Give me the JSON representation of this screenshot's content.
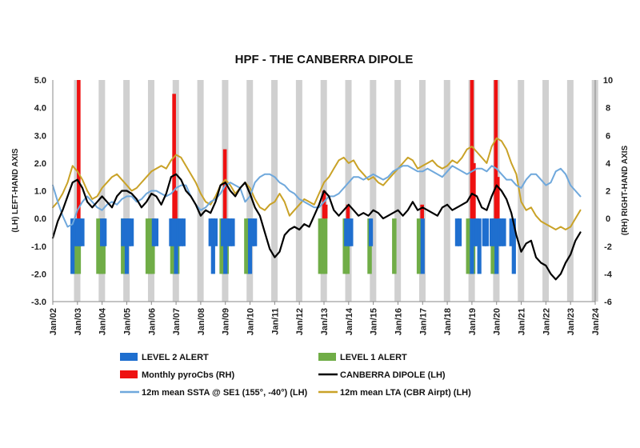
{
  "chart_data": {
    "type": "bar",
    "title": "HPF - THE CANBERRA DIPOLE",
    "left_axis_label": "(LH) LEFT-HAND AXIS",
    "right_axis_label": "(RH) RIGHT-HAND AXIS",
    "left_ylim": [
      -3.0,
      5.0
    ],
    "right_ylim": [
      -6,
      10
    ],
    "left_ticks": [
      "5.0",
      "4.0",
      "3.0",
      "2.0",
      "1.0",
      "0.0",
      "-1.0",
      "-2.0",
      "-3.0"
    ],
    "right_ticks": [
      "10",
      "8",
      "6",
      "4",
      "2",
      "0",
      "-2",
      "-4",
      "-6"
    ],
    "x_ticks": [
      "Jan/02",
      "Jan/03",
      "Jan/04",
      "Jan/05",
      "Jan/06",
      "Jan/07",
      "Jan/08",
      "Jan/09",
      "Jan/10",
      "Jan/11",
      "Jan/12",
      "Jan/13",
      "Jan/14",
      "Jan/15",
      "Jan/16",
      "Jan/17",
      "Jan/18",
      "Jan/19",
      "Jan/20",
      "Jan/21",
      "Jan/22",
      "Jan/23",
      "Jan/24"
    ],
    "x_range": [
      2002.0,
      2024.0
    ],
    "grid": "vertical grey bands each year",
    "legend_placement": "bottom",
    "colors": {
      "level2": "#1f6fcf",
      "level1": "#70ad47",
      "pyrocbs": "#ee1111",
      "dipole": "#000000",
      "ssta": "#6fa8dc",
      "lta": "#c9a227",
      "band": "#d0d0d0"
    },
    "legend": [
      {
        "key": "level2",
        "label": "LEVEL 2 ALERT",
        "kind": "bar"
      },
      {
        "key": "level1",
        "label": "LEVEL 1 ALERT",
        "kind": "bar"
      },
      {
        "key": "pyrocbs",
        "label": "Monthly pyroCbs (RH)",
        "kind": "bar"
      },
      {
        "key": "dipole",
        "label": "CANBERRA DIPOLE (LH)",
        "kind": "line"
      },
      {
        "key": "ssta",
        "label": "12m mean SSTA @ SE1 (155°, -40°) (LH)",
        "kind": "line"
      },
      {
        "key": "lta",
        "label": "12m mean LTA (CBR Airpt) (LH)",
        "kind": "line"
      }
    ],
    "level1_alerts": [
      {
        "x": 2002.85,
        "y": -2.0
      },
      {
        "x": 2002.95,
        "y": -2.0
      },
      {
        "x": 2003.05,
        "y": -2.0
      },
      {
        "x": 2003.85,
        "y": -2.0
      },
      {
        "x": 2003.95,
        "y": -2.0
      },
      {
        "x": 2004.05,
        "y": -2.0
      },
      {
        "x": 2004.85,
        "y": -2.0
      },
      {
        "x": 2004.95,
        "y": -2.0
      },
      {
        "x": 2005.85,
        "y": -2.0
      },
      {
        "x": 2005.95,
        "y": -2.0
      },
      {
        "x": 2006.05,
        "y": -2.0
      },
      {
        "x": 2006.85,
        "y": -2.0
      },
      {
        "x": 2006.95,
        "y": -2.0
      },
      {
        "x": 2007.05,
        "y": -2.0
      },
      {
        "x": 2008.85,
        "y": -2.0
      },
      {
        "x": 2008.95,
        "y": -2.0
      },
      {
        "x": 2009.05,
        "y": -2.0
      },
      {
        "x": 2009.85,
        "y": -2.0
      },
      {
        "x": 2009.95,
        "y": -2.0
      },
      {
        "x": 2012.85,
        "y": -2.0
      },
      {
        "x": 2012.95,
        "y": -2.0
      },
      {
        "x": 2013.05,
        "y": -2.0
      },
      {
        "x": 2013.85,
        "y": -2.0
      },
      {
        "x": 2013.95,
        "y": -2.0
      },
      {
        "x": 2014.85,
        "y": -2.0
      },
      {
        "x": 2015.85,
        "y": -2.0
      },
      {
        "x": 2016.85,
        "y": -2.0
      },
      {
        "x": 2018.85,
        "y": -2.0
      },
      {
        "x": 2018.95,
        "y": -2.0
      },
      {
        "x": 2019.05,
        "y": -2.0
      },
      {
        "x": 2019.85,
        "y": -2.0
      },
      {
        "x": 2019.95,
        "y": -2.0
      }
    ],
    "level2_alerts": [
      {
        "x": 2002.8,
        "y": -2.0
      },
      {
        "x": 2002.9,
        "y": -1.0
      },
      {
        "x": 2003.0,
        "y": -1.0
      },
      {
        "x": 2003.1,
        "y": -1.0
      },
      {
        "x": 2003.2,
        "y": -1.0
      },
      {
        "x": 2004.0,
        "y": -1.0
      },
      {
        "x": 2004.1,
        "y": -1.0
      },
      {
        "x": 2004.85,
        "y": -1.0
      },
      {
        "x": 2005.0,
        "y": -2.0
      },
      {
        "x": 2005.1,
        "y": -1.0
      },
      {
        "x": 2005.2,
        "y": -1.0
      },
      {
        "x": 2006.1,
        "y": -1.0
      },
      {
        "x": 2006.2,
        "y": -1.0
      },
      {
        "x": 2006.8,
        "y": -1.0
      },
      {
        "x": 2006.9,
        "y": -1.0
      },
      {
        "x": 2007.0,
        "y": -2.0
      },
      {
        "x": 2007.1,
        "y": -1.0
      },
      {
        "x": 2007.2,
        "y": -1.0
      },
      {
        "x": 2007.3,
        "y": -1.0
      },
      {
        "x": 2008.4,
        "y": -1.0
      },
      {
        "x": 2008.5,
        "y": -2.0
      },
      {
        "x": 2008.6,
        "y": -1.0
      },
      {
        "x": 2008.9,
        "y": -1.0
      },
      {
        "x": 2009.0,
        "y": -2.0
      },
      {
        "x": 2009.1,
        "y": -1.0
      },
      {
        "x": 2009.2,
        "y": -1.0
      },
      {
        "x": 2009.3,
        "y": -1.0
      },
      {
        "x": 2010.0,
        "y": -2.0
      },
      {
        "x": 2010.1,
        "y": -1.0
      },
      {
        "x": 2010.2,
        "y": -1.0
      },
      {
        "x": 2013.9,
        "y": -1.0
      },
      {
        "x": 2014.0,
        "y": -1.0
      },
      {
        "x": 2014.1,
        "y": -1.0
      },
      {
        "x": 2014.9,
        "y": -1.0
      },
      {
        "x": 2017.0,
        "y": -2.0
      },
      {
        "x": 2018.4,
        "y": -1.0
      },
      {
        "x": 2018.5,
        "y": -1.0
      },
      {
        "x": 2019.0,
        "y": -2.0
      },
      {
        "x": 2019.1,
        "y": -1.0
      },
      {
        "x": 2019.2,
        "y": -1.0
      },
      {
        "x": 2019.3,
        "y": -2.0
      },
      {
        "x": 2019.5,
        "y": -1.0
      },
      {
        "x": 2019.6,
        "y": -1.0
      },
      {
        "x": 2019.8,
        "y": -1.0
      },
      {
        "x": 2019.9,
        "y": -1.0
      },
      {
        "x": 2020.0,
        "y": -2.0
      },
      {
        "x": 2020.1,
        "y": -1.0
      },
      {
        "x": 2020.2,
        "y": -1.0
      },
      {
        "x": 2020.3,
        "y": -1.0
      },
      {
        "x": 2020.6,
        "y": -1.0
      },
      {
        "x": 2020.7,
        "y": -2.0
      }
    ],
    "pyrocbs": [
      {
        "x": 2003.05,
        "y": 10.0
      },
      {
        "x": 2006.92,
        "y": 9.0
      },
      {
        "x": 2006.98,
        "y": 2.0
      },
      {
        "x": 2008.98,
        "y": 5.0
      },
      {
        "x": 2013.0,
        "y": 2.0
      },
      {
        "x": 2013.07,
        "y": 1.0
      },
      {
        "x": 2013.97,
        "y": 1.0
      },
      {
        "x": 2016.98,
        "y": 1.0
      },
      {
        "x": 2019.0,
        "y": 10.0
      },
      {
        "x": 2019.08,
        "y": 4.0
      },
      {
        "x": 2019.97,
        "y": 10.0
      },
      {
        "x": 2020.05,
        "y": 3.0
      }
    ],
    "dipole": {
      "x": [
        2002.0,
        2002.2,
        2002.4,
        2002.6,
        2002.8,
        2003.0,
        2003.2,
        2003.4,
        2003.6,
        2003.8,
        2004.0,
        2004.2,
        2004.4,
        2004.6,
        2004.8,
        2005.0,
        2005.2,
        2005.4,
        2005.6,
        2005.8,
        2006.0,
        2006.2,
        2006.4,
        2006.6,
        2006.8,
        2007.0,
        2007.2,
        2007.4,
        2007.6,
        2007.8,
        2008.0,
        2008.2,
        2008.4,
        2008.6,
        2008.8,
        2009.0,
        2009.2,
        2009.4,
        2009.6,
        2009.8,
        2010.0,
        2010.2,
        2010.4,
        2010.6,
        2010.8,
        2011.0,
        2011.2,
        2011.4,
        2011.6,
        2011.8,
        2012.0,
        2012.2,
        2012.4,
        2012.6,
        2012.8,
        2013.0,
        2013.2,
        2013.4,
        2013.6,
        2013.8,
        2014.0,
        2014.2,
        2014.4,
        2014.6,
        2014.8,
        2015.0,
        2015.2,
        2015.4,
        2015.6,
        2015.8,
        2016.0,
        2016.2,
        2016.4,
        2016.6,
        2016.8,
        2017.0,
        2017.2,
        2017.4,
        2017.6,
        2017.8,
        2018.0,
        2018.2,
        2018.4,
        2018.6,
        2018.8,
        2019.0,
        2019.2,
        2019.4,
        2019.6,
        2019.8,
        2020.0,
        2020.2,
        2020.4,
        2020.6,
        2020.8,
        2021.0,
        2021.2,
        2021.4,
        2021.6,
        2021.8,
        2022.0,
        2022.2,
        2022.4,
        2022.6,
        2022.8,
        2023.0,
        2023.2,
        2023.4
      ],
      "y": [
        -0.7,
        -0.1,
        0.3,
        0.8,
        1.3,
        1.4,
        1.1,
        0.6,
        0.4,
        0.6,
        0.8,
        0.6,
        0.4,
        0.8,
        1.0,
        1.0,
        0.9,
        0.7,
        0.4,
        0.6,
        0.9,
        0.8,
        0.5,
        0.9,
        1.5,
        1.6,
        1.4,
        1.0,
        0.8,
        0.5,
        0.1,
        0.3,
        0.2,
        0.6,
        1.2,
        1.3,
        1.0,
        0.8,
        1.1,
        1.3,
        0.9,
        0.4,
        0.1,
        -0.5,
        -1.1,
        -1.4,
        -1.2,
        -0.6,
        -0.4,
        -0.3,
        -0.4,
        -0.2,
        -0.3,
        0.1,
        0.5,
        1.0,
        0.8,
        0.3,
        0.1,
        0.3,
        0.5,
        0.3,
        0.1,
        0.2,
        0.1,
        0.3,
        0.2,
        0.0,
        0.1,
        0.2,
        0.3,
        0.1,
        0.3,
        0.6,
        0.3,
        0.4,
        0.3,
        0.2,
        0.1,
        0.4,
        0.5,
        0.3,
        0.4,
        0.5,
        0.6,
        0.9,
        0.8,
        0.4,
        0.3,
        0.8,
        1.2,
        1.0,
        0.7,
        0.2,
        -0.6,
        -1.2,
        -0.9,
        -0.8,
        -1.4,
        -1.6,
        -1.7,
        -2.0,
        -2.2,
        -2.0,
        -1.6,
        -1.3,
        -0.8,
        -0.5
      ]
    },
    "ssta": {
      "x": [
        2002.0,
        2002.2,
        2002.4,
        2002.6,
        2002.8,
        2003.0,
        2003.2,
        2003.4,
        2003.6,
        2003.8,
        2004.0,
        2004.2,
        2004.4,
        2004.6,
        2004.8,
        2005.0,
        2005.2,
        2005.4,
        2005.6,
        2005.8,
        2006.0,
        2006.2,
        2006.4,
        2006.6,
        2006.8,
        2007.0,
        2007.2,
        2007.4,
        2007.6,
        2007.8,
        2008.0,
        2008.2,
        2008.4,
        2008.6,
        2008.8,
        2009.0,
        2009.2,
        2009.4,
        2009.6,
        2009.8,
        2010.0,
        2010.2,
        2010.4,
        2010.6,
        2010.8,
        2011.0,
        2011.2,
        2011.4,
        2011.6,
        2011.8,
        2012.0,
        2012.2,
        2012.4,
        2012.6,
        2012.8,
        2013.0,
        2013.2,
        2013.4,
        2013.6,
        2013.8,
        2014.0,
        2014.2,
        2014.4,
        2014.6,
        2014.8,
        2015.0,
        2015.2,
        2015.4,
        2015.6,
        2015.8,
        2016.0,
        2016.2,
        2016.4,
        2016.6,
        2016.8,
        2017.0,
        2017.2,
        2017.4,
        2017.6,
        2017.8,
        2018.0,
        2018.2,
        2018.4,
        2018.6,
        2018.8,
        2019.0,
        2019.2,
        2019.4,
        2019.6,
        2019.8,
        2020.0,
        2020.2,
        2020.4,
        2020.6,
        2020.8,
        2021.0,
        2021.2,
        2021.4,
        2021.6,
        2021.8,
        2022.0,
        2022.2,
        2022.4,
        2022.6,
        2022.8,
        2023.0,
        2023.2,
        2023.4
      ],
      "y": [
        1.2,
        0.6,
        0.1,
        -0.3,
        -0.2,
        0.3,
        0.6,
        0.8,
        0.6,
        0.4,
        0.3,
        0.5,
        0.6,
        0.5,
        0.7,
        0.8,
        0.8,
        0.6,
        0.7,
        0.9,
        1.0,
        1.0,
        0.9,
        0.8,
        0.9,
        1.1,
        1.2,
        1.2,
        0.8,
        0.5,
        0.3,
        0.4,
        0.6,
        0.7,
        0.9,
        1.2,
        1.3,
        1.2,
        1.1,
        0.6,
        0.8,
        1.3,
        1.5,
        1.6,
        1.6,
        1.5,
        1.3,
        1.2,
        1.0,
        0.9,
        0.7,
        0.6,
        0.5,
        0.4,
        0.4,
        0.6,
        0.8,
        0.8,
        0.9,
        1.1,
        1.3,
        1.5,
        1.5,
        1.4,
        1.5,
        1.6,
        1.5,
        1.4,
        1.5,
        1.7,
        1.8,
        1.9,
        1.9,
        1.8,
        1.7,
        1.7,
        1.8,
        1.7,
        1.6,
        1.5,
        1.7,
        1.9,
        1.8,
        1.7,
        1.6,
        1.7,
        1.8,
        1.8,
        1.7,
        1.9,
        1.8,
        1.6,
        1.4,
        1.4,
        1.2,
        1.1,
        1.4,
        1.6,
        1.6,
        1.4,
        1.2,
        1.3,
        1.7,
        1.8,
        1.6,
        1.2,
        1.0,
        0.8
      ]
    },
    "lta": {
      "x": [
        2002.0,
        2002.2,
        2002.4,
        2002.6,
        2002.8,
        2003.0,
        2003.2,
        2003.4,
        2003.6,
        2003.8,
        2004.0,
        2004.2,
        2004.4,
        2004.6,
        2004.8,
        2005.0,
        2005.2,
        2005.4,
        2005.6,
        2005.8,
        2006.0,
        2006.2,
        2006.4,
        2006.6,
        2006.8,
        2007.0,
        2007.2,
        2007.4,
        2007.6,
        2007.8,
        2008.0,
        2008.2,
        2008.4,
        2008.6,
        2008.8,
        2009.0,
        2009.2,
        2009.4,
        2009.6,
        2009.8,
        2010.0,
        2010.2,
        2010.4,
        2010.6,
        2010.8,
        2011.0,
        2011.2,
        2011.4,
        2011.6,
        2011.8,
        2012.0,
        2012.2,
        2012.4,
        2012.6,
        2012.8,
        2013.0,
        2013.2,
        2013.4,
        2013.6,
        2013.8,
        2014.0,
        2014.2,
        2014.4,
        2014.6,
        2014.8,
        2015.0,
        2015.2,
        2015.4,
        2015.6,
        2015.8,
        2016.0,
        2016.2,
        2016.4,
        2016.6,
        2016.8,
        2017.0,
        2017.2,
        2017.4,
        2017.6,
        2017.8,
        2018.0,
        2018.2,
        2018.4,
        2018.6,
        2018.8,
        2019.0,
        2019.2,
        2019.4,
        2019.6,
        2019.8,
        2020.0,
        2020.2,
        2020.4,
        2020.6,
        2020.8,
        2021.0,
        2021.2,
        2021.4,
        2021.6,
        2021.8,
        2022.0,
        2022.2,
        2022.4,
        2022.6,
        2022.8,
        2023.0,
        2023.2,
        2023.4
      ],
      "y": [
        0.4,
        0.6,
        0.9,
        1.3,
        1.9,
        1.7,
        1.4,
        1.0,
        0.7,
        0.8,
        1.1,
        1.3,
        1.5,
        1.6,
        1.4,
        1.2,
        1.0,
        1.1,
        1.3,
        1.5,
        1.7,
        1.8,
        1.9,
        1.8,
        2.1,
        2.3,
        2.2,
        1.9,
        1.6,
        1.3,
        0.9,
        0.6,
        0.5,
        0.8,
        1.2,
        1.4,
        1.2,
        0.9,
        1.1,
        1.3,
        1.1,
        0.7,
        0.4,
        0.3,
        0.5,
        0.6,
        0.9,
        0.6,
        0.1,
        0.3,
        0.5,
        0.7,
        0.6,
        0.5,
        0.9,
        1.3,
        1.5,
        1.8,
        2.1,
        2.2,
        2.0,
        2.1,
        1.8,
        1.6,
        1.4,
        1.5,
        1.3,
        1.2,
        1.4,
        1.6,
        1.8,
        2.0,
        2.2,
        2.1,
        1.8,
        1.9,
        2.0,
        2.1,
        1.9,
        1.8,
        1.9,
        2.1,
        2.0,
        2.2,
        2.5,
        2.6,
        2.4,
        2.2,
        2.0,
        2.6,
        2.9,
        2.8,
        2.5,
        2.0,
        1.6,
        0.6,
        0.3,
        0.4,
        0.1,
        -0.1,
        -0.2,
        -0.3,
        -0.4,
        -0.3,
        -0.4,
        -0.3,
        0.0,
        0.3
      ]
    }
  }
}
